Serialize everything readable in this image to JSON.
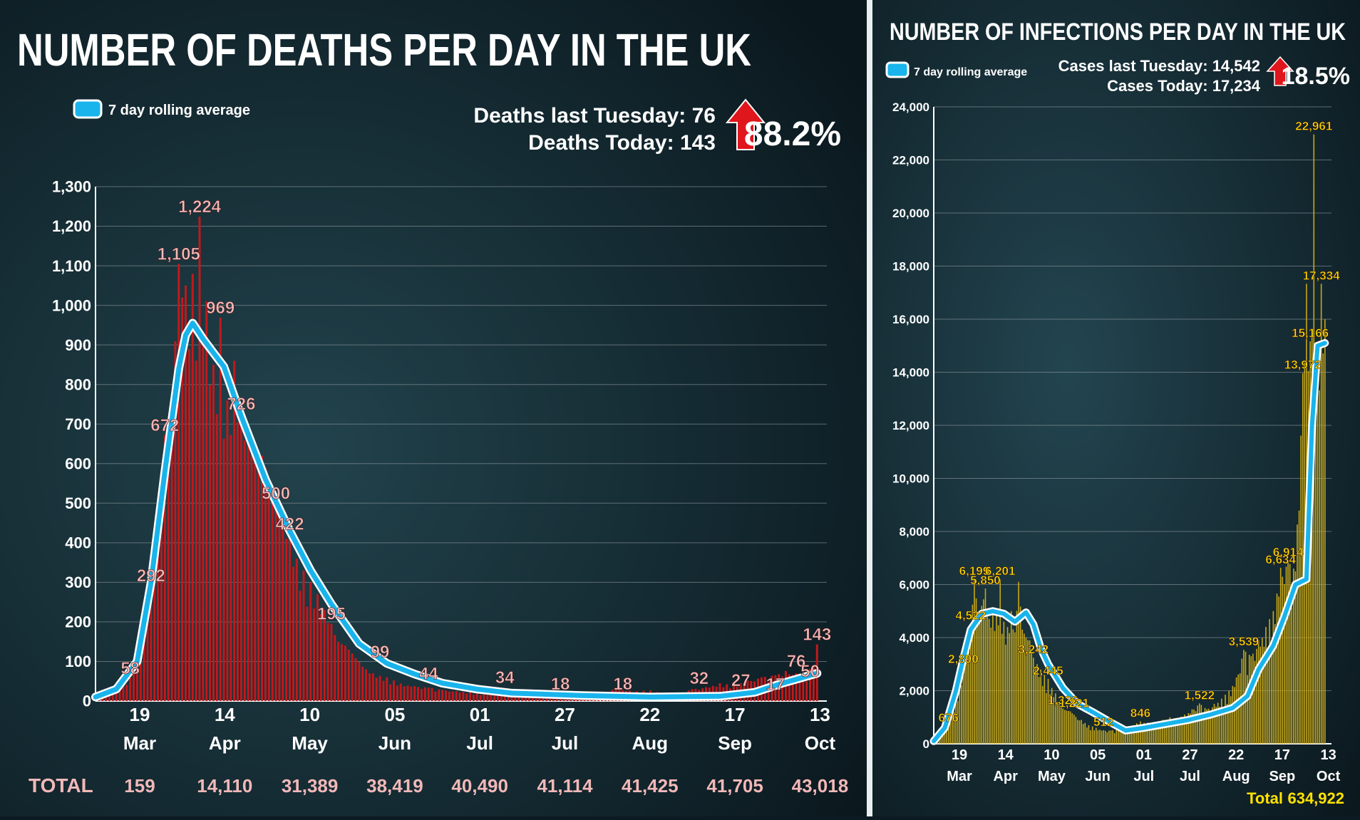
{
  "colors": {
    "deaths_bar": "#c0191c",
    "deaths_label": "#f2b8b8",
    "cases_bar": "#c8a818",
    "cases_label": "#ffe200",
    "rolling_avg": "#19b4ec",
    "arrow": "#e0161d"
  },
  "deaths_panel": {
    "title": "NUMBER OF DEATHS PER DAY IN THE UK",
    "legend": "7 day rolling average",
    "stat_line1": "Deaths last Tuesday: 76",
    "stat_line2": "Deaths Today: 143",
    "change": "88.2%",
    "arrow_icon": "red-up-arrow-icon",
    "totals_label": "TOTAL",
    "totals": [
      "159",
      "14,110",
      "31,389",
      "38,419",
      "40,490",
      "41,114",
      "41,425",
      "41,705",
      "43,018"
    ]
  },
  "cases_panel": {
    "title": "NUMBER OF INFECTIONS PER DAY IN THE UK",
    "legend": "7 day rolling average",
    "stat_line1": "Cases last Tuesday: 14,542",
    "stat_line2": "Cases Today: 17,234",
    "change": "18.5%",
    "arrow_icon": "red-up-arrow-icon",
    "total_label": "Total",
    "total_value": "634,922"
  },
  "chart_data": [
    {
      "type": "bar",
      "title": "NUMBER OF DEATHS PER DAY IN THE UK",
      "ylim": [
        0,
        1300
      ],
      "yticks": [
        "0",
        "100",
        "200",
        "300",
        "400",
        "500",
        "600",
        "700",
        "800",
        "900",
        "1,000",
        "1,100",
        "1,200",
        "1,300"
      ],
      "xticks": [
        {
          "day": "19",
          "month": "Mar"
        },
        {
          "day": "14",
          "month": "Apr"
        },
        {
          "day": "10",
          "month": "May"
        },
        {
          "day": "05",
          "month": "Jun"
        },
        {
          "day": "01",
          "month": "Jul"
        },
        {
          "day": "27",
          "month": "Jul"
        },
        {
          "day": "22",
          "month": "Aug"
        },
        {
          "day": "17",
          "month": "Sep"
        },
        {
          "day": "13",
          "month": "Oct"
        }
      ],
      "grid": true,
      "legend": "top-left",
      "series": [
        {
          "name": "7 day rolling average",
          "type": "line",
          "points": [
            [
              0,
              10
            ],
            [
              6,
              30
            ],
            [
              12,
              100
            ],
            [
              16,
              300
            ],
            [
              20,
              580
            ],
            [
              24,
              840
            ],
            [
              26,
              925
            ],
            [
              28,
              955
            ],
            [
              31,
              915
            ],
            [
              34,
              880
            ],
            [
              37,
              845
            ],
            [
              42,
              720
            ],
            [
              49,
              560
            ],
            [
              56,
              430
            ],
            [
              62,
              330
            ],
            [
              68,
              245
            ],
            [
              76,
              145
            ],
            [
              84,
              95
            ],
            [
              92,
              68
            ],
            [
              100,
              45
            ],
            [
              110,
              30
            ],
            [
              120,
              20
            ],
            [
              140,
              14
            ],
            [
              160,
              10
            ],
            [
              180,
              12
            ],
            [
              190,
              22
            ],
            [
              198,
              45
            ],
            [
              204,
              60
            ],
            [
              208,
              70
            ]
          ]
        },
        {
          "name": "daily deaths",
          "type": "bar",
          "points": [
            [
              0,
              1
            ],
            [
              6,
              20
            ],
            [
              10,
              58
            ],
            [
              14,
              180
            ],
            [
              16,
              292
            ],
            [
              20,
              672
            ],
            [
              22,
              720
            ],
            [
              24,
              1105
            ],
            [
              25,
              1020
            ],
            [
              26,
              1050
            ],
            [
              27,
              890
            ],
            [
              28,
              1080
            ],
            [
              29,
              860
            ],
            [
              30,
              1224
            ],
            [
              31,
              900
            ],
            [
              32,
              1010
            ],
            [
              34,
              850
            ],
            [
              36,
              969
            ],
            [
              38,
              760
            ],
            [
              40,
              860
            ],
            [
              42,
              726
            ],
            [
              44,
              680
            ],
            [
              46,
              600
            ],
            [
              48,
              620
            ],
            [
              50,
              560
            ],
            [
              52,
              500
            ],
            [
              54,
              470
            ],
            [
              56,
              422
            ],
            [
              58,
              360
            ],
            [
              60,
              330
            ],
            [
              62,
              300
            ],
            [
              64,
              270
            ],
            [
              66,
              230
            ],
            [
              68,
              195
            ],
            [
              70,
              150
            ],
            [
              72,
              140
            ],
            [
              74,
              120
            ],
            [
              76,
              99
            ],
            [
              78,
              80
            ],
            [
              80,
              70
            ],
            [
              84,
              60
            ],
            [
              88,
              44
            ],
            [
              92,
              38
            ],
            [
              96,
              34
            ],
            [
              100,
              28
            ],
            [
              104,
              25
            ],
            [
              108,
              22
            ],
            [
              112,
              18
            ],
            [
              118,
              18
            ],
            [
              124,
              15
            ],
            [
              130,
              18
            ],
            [
              136,
              12
            ],
            [
              140,
              16
            ],
            [
              146,
              20
            ],
            [
              150,
              32
            ],
            [
              156,
              25
            ],
            [
              160,
              27
            ],
            [
              164,
              20
            ],
            [
              168,
              17
            ],
            [
              172,
              30
            ],
            [
              176,
              35
            ],
            [
              180,
              45
            ],
            [
              184,
              40
            ],
            [
              188,
              52
            ],
            [
              192,
              60
            ],
            [
              196,
              65
            ],
            [
              199,
              76
            ],
            [
              202,
              70
            ],
            [
              205,
              50
            ],
            [
              208,
              143
            ]
          ]
        },
        {
          "name": "labelled values",
          "type": "labels",
          "points": [
            [
              10,
              58
            ],
            [
              16,
              292
            ],
            [
              20,
              672
            ],
            [
              24,
              1105
            ],
            [
              30,
              1224
            ],
            [
              36,
              969
            ],
            [
              42,
              726
            ],
            [
              52,
              500
            ],
            [
              56,
              422
            ],
            [
              68,
              195
            ],
            [
              82,
              99
            ],
            [
              96,
              44
            ],
            [
              118,
              34
            ],
            [
              134,
              18
            ],
            [
              152,
              18
            ],
            [
              174,
              32
            ],
            [
              186,
              27
            ],
            [
              196,
              17
            ],
            [
              202,
              76
            ],
            [
              206,
              50
            ],
            [
              208,
              143
            ]
          ]
        }
      ]
    },
    {
      "type": "bar",
      "title": "NUMBER OF INFECTIONS PER DAY IN THE UK",
      "ylim": [
        0,
        24000
      ],
      "yticks": [
        "0",
        "2,000",
        "4,000",
        "6,000",
        "8,000",
        "10,000",
        "12,000",
        "14,000",
        "16,000",
        "18,000",
        "20,000",
        "22,000",
        "24,000"
      ],
      "xticks": [
        {
          "day": "19",
          "month": "Mar"
        },
        {
          "day": "14",
          "month": "Apr"
        },
        {
          "day": "10",
          "month": "May"
        },
        {
          "day": "05",
          "month": "Jun"
        },
        {
          "day": "01",
          "month": "Jul"
        },
        {
          "day": "27",
          "month": "Jul"
        },
        {
          "day": "22",
          "month": "Aug"
        },
        {
          "day": "17",
          "month": "Sep"
        },
        {
          "day": "13",
          "month": "Oct"
        }
      ],
      "grid": true,
      "legend": "top-left",
      "series": [
        {
          "name": "7 day rolling average",
          "type": "line",
          "points": [
            [
              0,
              100
            ],
            [
              6,
              600
            ],
            [
              12,
              2000
            ],
            [
              16,
              3200
            ],
            [
              20,
              4300
            ],
            [
              26,
              4900
            ],
            [
              32,
              5000
            ],
            [
              38,
              4900
            ],
            [
              44,
              4600
            ],
            [
              50,
              4950
            ],
            [
              54,
              4500
            ],
            [
              58,
              3600
            ],
            [
              62,
              3000
            ],
            [
              70,
              2100
            ],
            [
              78,
              1500
            ],
            [
              86,
              1200
            ],
            [
              96,
              800
            ],
            [
              104,
              500
            ],
            [
              114,
              600
            ],
            [
              126,
              750
            ],
            [
              138,
              900
            ],
            [
              150,
              1100
            ],
            [
              162,
              1350
            ],
            [
              170,
              1800
            ],
            [
              176,
              2800
            ],
            [
              184,
              3700
            ],
            [
              190,
              4800
            ],
            [
              196,
              6000
            ],
            [
              202,
              6200
            ],
            [
              205,
              12000
            ],
            [
              208,
              15000
            ],
            [
              212,
              15100
            ]
          ]
        },
        {
          "name": "daily cases",
          "type": "bar",
          "points": [
            [
              0,
              150
            ],
            [
              4,
              400
            ],
            [
              8,
              676
            ],
            [
              12,
              1800
            ],
            [
              16,
              2890
            ],
            [
              20,
              4522
            ],
            [
              22,
              6199
            ],
            [
              24,
              4800
            ],
            [
              26,
              5200
            ],
            [
              28,
              5850
            ],
            [
              30,
              4700
            ],
            [
              32,
              4900
            ],
            [
              34,
              5000
            ],
            [
              36,
              6201
            ],
            [
              38,
              4600
            ],
            [
              40,
              4400
            ],
            [
              42,
              5000
            ],
            [
              44,
              4200
            ],
            [
              46,
              6100
            ],
            [
              48,
              4300
            ],
            [
              50,
              4000
            ],
            [
              52,
              3900
            ],
            [
              54,
              3242
            ],
            [
              56,
              3000
            ],
            [
              58,
              2800
            ],
            [
              60,
              2600
            ],
            [
              62,
              2445
            ],
            [
              64,
              2100
            ],
            [
              66,
              1900
            ],
            [
              68,
              1500
            ],
            [
              70,
              1326
            ],
            [
              72,
              1250
            ],
            [
              74,
              1221
            ],
            [
              76,
              1100
            ],
            [
              80,
              900
            ],
            [
              84,
              700
            ],
            [
              88,
              600
            ],
            [
              92,
              512
            ],
            [
              96,
              500
            ],
            [
              100,
              550
            ],
            [
              104,
              620
            ],
            [
              108,
              700
            ],
            [
              112,
              846
            ],
            [
              116,
              800
            ],
            [
              120,
              750
            ],
            [
              124,
              900
            ],
            [
              128,
              1000
            ],
            [
              132,
              950
            ],
            [
              136,
              1100
            ],
            [
              140,
              1300
            ],
            [
              144,
              1522
            ],
            [
              148,
              1300
            ],
            [
              152,
              1500
            ],
            [
              156,
              1700
            ],
            [
              160,
              2000
            ],
            [
              164,
              2500
            ],
            [
              168,
              3539
            ],
            [
              172,
              3300
            ],
            [
              176,
              3900
            ],
            [
              180,
              4400
            ],
            [
              184,
              5000
            ],
            [
              188,
              6634
            ],
            [
              192,
              6914
            ],
            [
              196,
              6500
            ],
            [
              200,
              13972
            ],
            [
              202,
              17334
            ],
            [
              204,
              15166
            ],
            [
              206,
              22961
            ],
            [
              208,
              15000
            ],
            [
              210,
              17334
            ],
            [
              212,
              16000
            ]
          ]
        },
        {
          "name": "labelled values",
          "type": "labels",
          "points": [
            [
              8,
              676
            ],
            [
              16,
              2890
            ],
            [
              20,
              4522
            ],
            [
              22,
              6199
            ],
            [
              28,
              5850
            ],
            [
              36,
              6201
            ],
            [
              54,
              3242
            ],
            [
              62,
              2445
            ],
            [
              70,
              1326
            ],
            [
              76,
              1221
            ],
            [
              92,
              512
            ],
            [
              112,
              846
            ],
            [
              144,
              1522
            ],
            [
              168,
              3539
            ],
            [
              188,
              6634
            ],
            [
              192,
              6914
            ],
            [
              200,
              13972
            ],
            [
              204,
              15166
            ],
            [
              206,
              22961
            ],
            [
              210,
              17334
            ]
          ]
        }
      ],
      "label_text": {
        "6634": "6,634"
      }
    }
  ]
}
